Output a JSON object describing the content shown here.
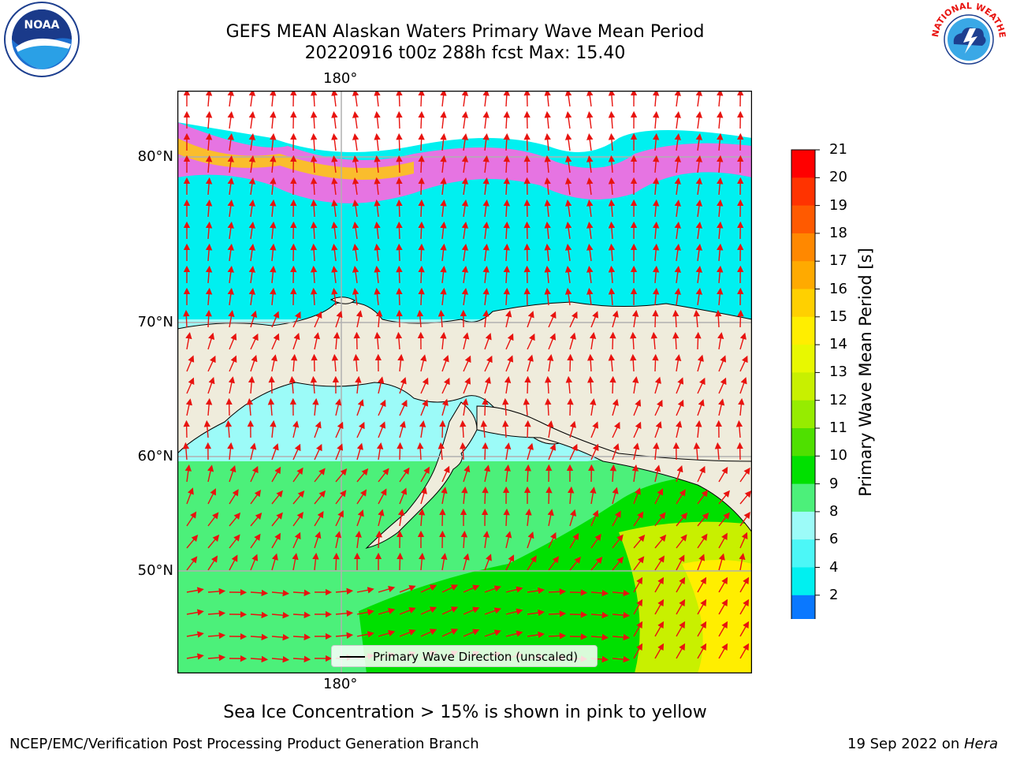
{
  "header": {
    "title_line1": "GEFS MEAN Alaskan Waters Primary Wave Mean Period",
    "title_line2": "20220916 t00z 288h fcst   Max: 15.40"
  },
  "logos": {
    "left": "NOAA",
    "right": "NATIONAL WEATHER SERVICE"
  },
  "map": {
    "lon_label_top": "180°",
    "lon_label_bottom": "180°",
    "lat_labels": [
      "80°N",
      "70°N",
      "60°N",
      "50°N"
    ],
    "legend_label": "Primary Wave Direction (unscaled)",
    "land_color": "#efecdc",
    "arrow_color": "#e8130f"
  },
  "colorbar": {
    "label": "Primary Wave Mean Period [s]",
    "ticks": [
      "21",
      "20",
      "19",
      "18",
      "17",
      "16",
      "15",
      "14",
      "13",
      "12",
      "11",
      "10",
      "9",
      "8",
      "6",
      "4",
      "2"
    ],
    "colors": [
      "#ff0000",
      "#ff3300",
      "#ff5a00",
      "#ff8800",
      "#ffaa00",
      "#ffd000",
      "#ffee00",
      "#e8f800",
      "#c8f000",
      "#96ec00",
      "#4fe000",
      "#00e000",
      "#4cf07a",
      "#9cfbf8",
      "#4cf7f7",
      "#00f0f0",
      "#0a78ff"
    ],
    "underflow_color": "#1410ff"
  },
  "note": "Sea Ice Concentration > 15% is shown in pink to yellow",
  "footer": {
    "left": "NCEP/EMC/Verification Post Processing Product Generation Branch",
    "right_prefix": "19 Sep 2022 on ",
    "right_machine": "Hera"
  }
}
